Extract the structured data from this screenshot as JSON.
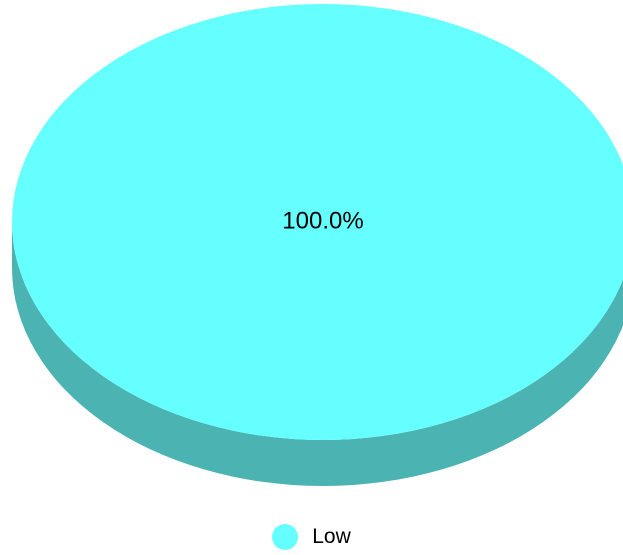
{
  "chart_data": {
    "type": "pie",
    "style": "3d",
    "slices": [
      {
        "name": "Low",
        "value": 100.0,
        "label": "100.0%",
        "color": "#66ffff",
        "side_color": "#4cb3b3"
      }
    ],
    "legend": {
      "placement": "bottom-center",
      "entries": [
        "Low"
      ]
    }
  }
}
